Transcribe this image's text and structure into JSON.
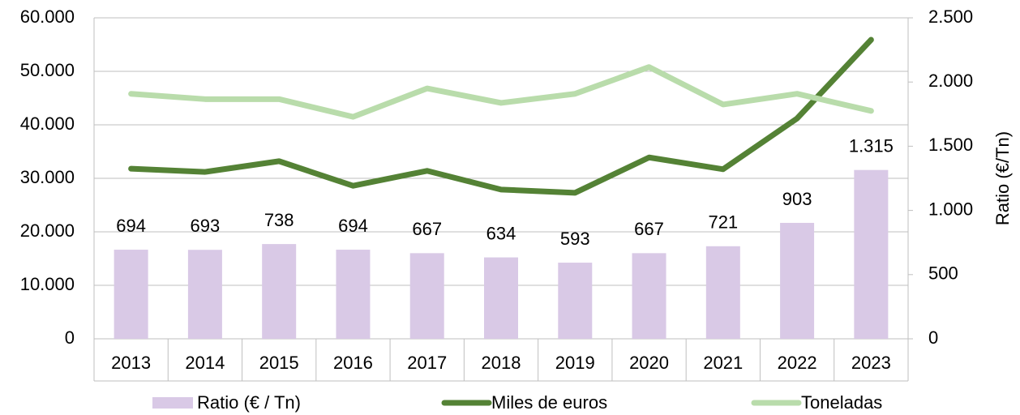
{
  "chart_data": {
    "type": "bar-line",
    "categories": [
      "2013",
      "2014",
      "2015",
      "2016",
      "2017",
      "2018",
      "2019",
      "2020",
      "2021",
      "2022",
      "2023"
    ],
    "series": [
      {
        "name": "Ratio (€ / Tn)",
        "type": "bar",
        "axis": "y2",
        "color": "#d9c9e6",
        "values": [
          694,
          693,
          738,
          694,
          667,
          634,
          593,
          667,
          721,
          903,
          1315
        ],
        "value_labels": [
          "694",
          "693",
          "738",
          "694",
          "667",
          "634",
          "593",
          "667",
          "721",
          "903",
          "1.315"
        ]
      },
      {
        "name": "Miles de euros",
        "type": "line",
        "axis": "y",
        "color": "#548235",
        "values": [
          31800,
          31200,
          33200,
          28600,
          31400,
          27900,
          27300,
          33900,
          31700,
          41200,
          55900
        ]
      },
      {
        "name": "Toneladas",
        "type": "line",
        "axis": "y",
        "color": "#b9dcab",
        "values": [
          45800,
          44800,
          44800,
          41500,
          46800,
          44100,
          45800,
          50800,
          43800,
          45800,
          42600
        ]
      }
    ],
    "ylim": [
      0,
      60000
    ],
    "yticks": [
      0,
      {
        "value": 10000,
        "label": "10.000"
      },
      {
        "value": 20000,
        "label": "20.000"
      },
      {
        "value": 30000,
        "label": "30.000"
      },
      {
        "value": 40000,
        "label": "40.000"
      },
      {
        "value": 50000,
        "label": "50.000"
      },
      {
        "value": 60000,
        "label": "60.000"
      }
    ],
    "y2lim": [
      0,
      2500
    ],
    "y2ticks": [
      0,
      500,
      {
        "value": 1000,
        "label": "1.000"
      },
      {
        "value": 1500,
        "label": "1.500"
      },
      {
        "value": 2000,
        "label": "2.000"
      },
      {
        "value": 2500,
        "label": "2.500"
      }
    ],
    "y2label": "Ratio (€/Tn)",
    "grid": true,
    "legend": "bottom"
  }
}
